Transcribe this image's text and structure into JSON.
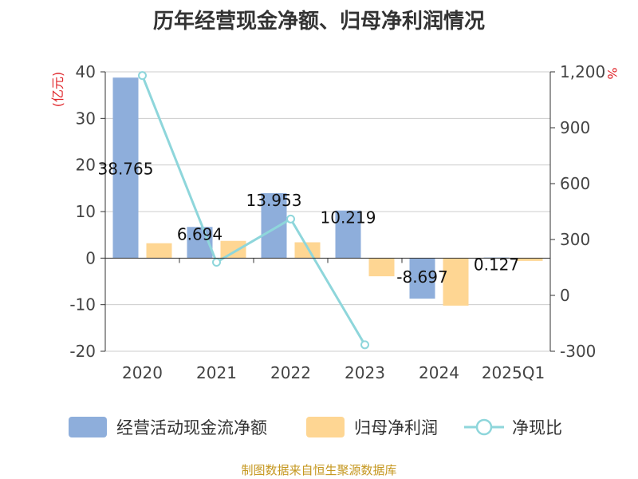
{
  "chart_data": {
    "type": "bar",
    "title": "历年经营现金净额、归母净利润情况",
    "categories": [
      "2020",
      "2021",
      "2022",
      "2023",
      "2024",
      "2025Q1"
    ],
    "y_left": {
      "unit": "(亿元)",
      "range": [
        -20,
        40
      ],
      "ticks": [
        "40",
        "30",
        "20",
        "10",
        "0",
        "-10",
        "-20"
      ]
    },
    "y_right": {
      "unit": "%",
      "range": [
        -300,
        1200
      ],
      "ticks": [
        "1,200",
        "900",
        "600",
        "300",
        "0",
        "-300"
      ]
    },
    "series": [
      {
        "name": "经营活动现金流净额",
        "type": "bar",
        "axis": "left",
        "color": "#8eaedb",
        "values": [
          38.765,
          6.694,
          13.953,
          10.219,
          -8.697,
          0.127
        ],
        "labels": [
          "38.765",
          "6.694",
          "13.953",
          "10.219",
          "-8.697",
          "0.127"
        ]
      },
      {
        "name": "归母净利润",
        "type": "bar",
        "axis": "left",
        "color": "#fed693",
        "values": [
          3.2,
          3.7,
          3.4,
          -3.9,
          -10.2,
          -0.6
        ]
      },
      {
        "name": "净现比",
        "type": "line",
        "axis": "right",
        "color": "#8ed6db",
        "values": [
          1180,
          178,
          410,
          -265,
          null,
          null
        ]
      }
    ],
    "legend_position": "bottom",
    "grid": true
  },
  "source": "制图数据来自恒生聚源数据库"
}
